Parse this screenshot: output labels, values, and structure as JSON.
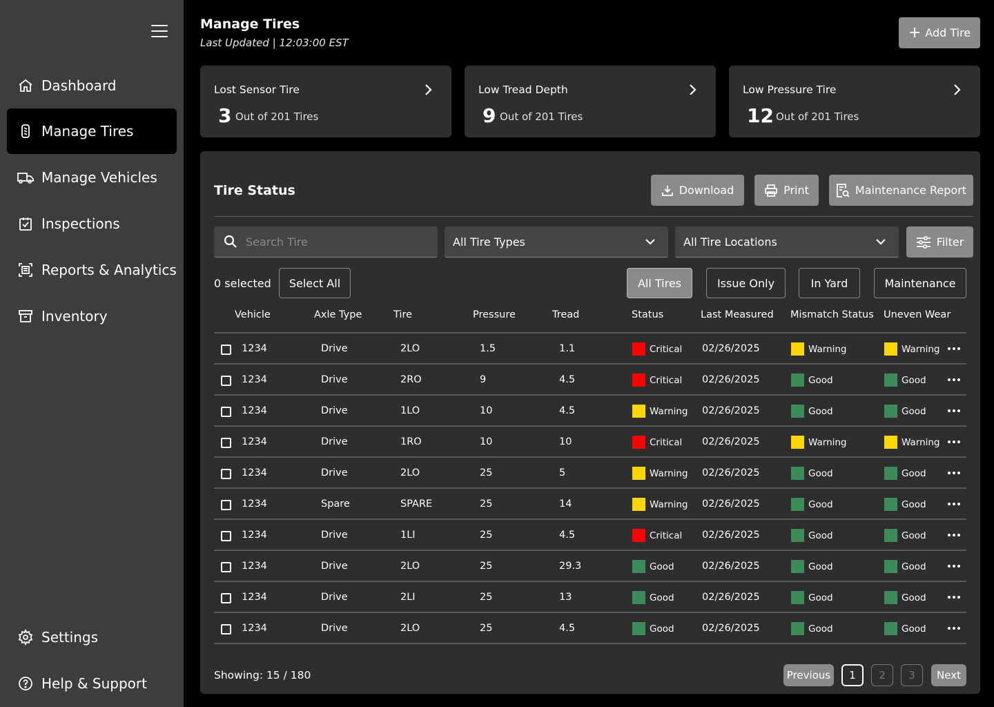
{
  "sidebar": {
    "items": [
      {
        "label": "Dashboard",
        "icon": "home-icon"
      },
      {
        "label": "Manage Tires",
        "icon": "tire-icon",
        "active": true
      },
      {
        "label": "Manage Vehicles",
        "icon": "truck-icon"
      },
      {
        "label": "Inspections",
        "icon": "clipboard-check-icon"
      },
      {
        "label": "Reports & Analytics",
        "icon": "report-scan-icon"
      },
      {
        "label": "Inventory",
        "icon": "archive-icon"
      }
    ],
    "bottom_items": [
      {
        "label": "Settings",
        "icon": "gear-icon"
      },
      {
        "label": "Help & Support",
        "icon": "help-circle-icon"
      }
    ]
  },
  "header": {
    "title": "Manage Tires",
    "last_updated": "Last Updated | 12:03:00 EST",
    "add_button": "Add Tire"
  },
  "cards": [
    {
      "title": "Lost Sensor Tire",
      "count": "3",
      "out_of": "Out of 201 Tires"
    },
    {
      "title": "Low Tread Depth",
      "count": "9",
      "out_of": "Out of 201 Tires"
    },
    {
      "title": "Low Pressure Tire",
      "count": "12",
      "out_of": "Out of 201 Tires"
    }
  ],
  "panel": {
    "title": "Tire Status",
    "download": "Download",
    "print": "Print",
    "maintenance_report": "Maintenance Report",
    "search_placeholder": "Search Tire",
    "tire_types": "All Tire Types",
    "tire_locations": "All Tire Locations",
    "filter": "Filter",
    "selected": "0 selected",
    "select_all": "Select All",
    "chips": [
      "All Tires",
      "Issue Only",
      "In Yard",
      "Maintenance"
    ]
  },
  "table": {
    "columns": [
      "Vehicle",
      "Axle Type",
      "Tire",
      "Pressure",
      "Tread",
      "Status",
      "Last Measured",
      "Mismatch Status",
      "Uneven Wear"
    ],
    "rows": [
      {
        "vehicle": "1234",
        "axle": "Drive",
        "tire": "2LO",
        "pressure": "1.5",
        "tread": "1.1",
        "status": "Critical",
        "measured": "02/26/2025",
        "mismatch": "Warning",
        "wear": "Warning"
      },
      {
        "vehicle": "1234",
        "axle": "Drive",
        "tire": "2RO",
        "pressure": "9",
        "tread": "4.5",
        "status": "Critical",
        "measured": "02/26/2025",
        "mismatch": "Good",
        "wear": "Good"
      },
      {
        "vehicle": "1234",
        "axle": "Drive",
        "tire": "1LO",
        "pressure": "10",
        "tread": "4.5",
        "status": "Warning",
        "measured": "02/26/2025",
        "mismatch": "Good",
        "wear": "Good"
      },
      {
        "vehicle": "1234",
        "axle": "Drive",
        "tire": "1RO",
        "pressure": "10",
        "tread": "10",
        "status": "Critical",
        "measured": "02/26/2025",
        "mismatch": "Warning",
        "wear": "Warning"
      },
      {
        "vehicle": "1234",
        "axle": "Drive",
        "tire": "2LO",
        "pressure": "25",
        "tread": "5",
        "status": "Warning",
        "measured": "02/26/2025",
        "mismatch": "Good",
        "wear": "Good"
      },
      {
        "vehicle": "1234",
        "axle": "Spare",
        "tire": "SPARE",
        "pressure": "25",
        "tread": "14",
        "status": "Warning",
        "measured": "02/26/2025",
        "mismatch": "Good",
        "wear": "Good"
      },
      {
        "vehicle": "1234",
        "axle": "Drive",
        "tire": "1LI",
        "pressure": "25",
        "tread": "4.5",
        "status": "Critical",
        "measured": "02/26/2025",
        "mismatch": "Good",
        "wear": "Good"
      },
      {
        "vehicle": "1234",
        "axle": "Drive",
        "tire": "2LO",
        "pressure": "25",
        "tread": "29.3",
        "status": "Good",
        "measured": "02/26/2025",
        "mismatch": "Good",
        "wear": "Good"
      },
      {
        "vehicle": "1234",
        "axle": "Drive",
        "tire": "2LI",
        "pressure": "25",
        "tread": "13",
        "status": "Good",
        "measured": "02/26/2025",
        "mismatch": "Good",
        "wear": "Good"
      },
      {
        "vehicle": "1234",
        "axle": "Drive",
        "tire": "2LO",
        "pressure": "25",
        "tread": "4.5",
        "status": "Good",
        "measured": "02/26/2025",
        "mismatch": "Good",
        "wear": "Good"
      }
    ]
  },
  "status_colors": {
    "Critical": "#ff0000",
    "Warning": "#ffd700",
    "Good": "#3d8b5a"
  },
  "pagination": {
    "showing": "Showing: 15 / 180",
    "previous": "Previous",
    "pages": [
      "1",
      "2",
      "3"
    ],
    "current": "1",
    "next": "Next"
  }
}
